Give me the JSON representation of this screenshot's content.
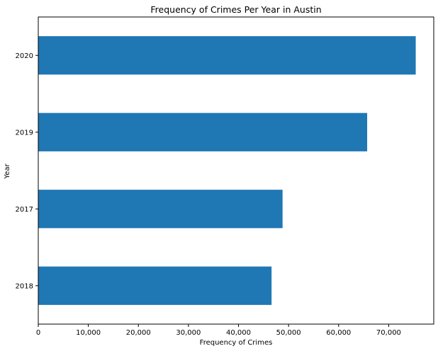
{
  "chart_data": {
    "type": "bar",
    "orientation": "horizontal",
    "title": "Frequency of Crimes Per Year in Austin",
    "xlabel": "Frequency of Crimes",
    "ylabel": "Year",
    "categories": [
      "2018",
      "2017",
      "2019",
      "2020"
    ],
    "values": [
      46600,
      48800,
      65700,
      75400
    ],
    "xlim": [
      0,
      79000
    ],
    "xticks": [
      0,
      10000,
      20000,
      30000,
      40000,
      50000,
      60000,
      70000
    ],
    "xtick_labels": [
      "0",
      "10,000",
      "20,000",
      "30,000",
      "40,000",
      "50,000",
      "60,000",
      "70,000"
    ],
    "grid": false,
    "bar_color": "#1f77b4"
  }
}
